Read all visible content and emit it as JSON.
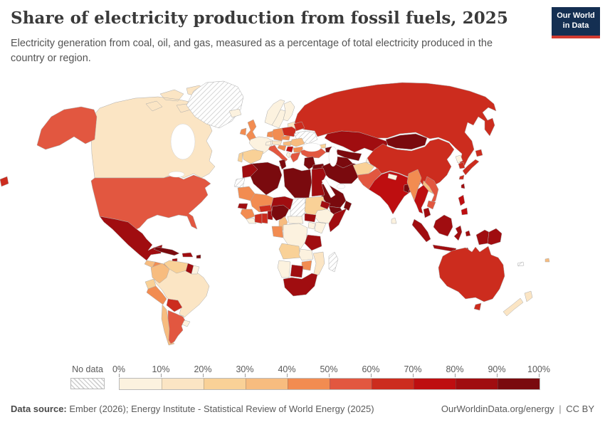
{
  "header": {
    "title": "Share of electricity production from fossil fuels, 2025",
    "subtitle": "Electricity generation from coal, oil, and gas, measured as a percentage of total electricity produced in the country or region."
  },
  "logo": {
    "line1": "Our World",
    "line2": "in Data",
    "bg_color": "#142f52",
    "accent_color": "#d13a30"
  },
  "legend": {
    "no_data_label": "No data",
    "tick_labels": [
      "0%",
      "10%",
      "20%",
      "30%",
      "40%",
      "50%",
      "60%",
      "70%",
      "80%",
      "90%",
      "100%"
    ]
  },
  "footer": {
    "source_label": "Data source:",
    "source_text": "Ember (2026); Energy Institute - Statistical Review of World Energy (2025)",
    "site": "OurWorldinData.org/energy",
    "separator": "|",
    "license": "CC BY"
  },
  "chart_data": {
    "type": "choropleth",
    "title": "Share of electricity production from fossil fuels, 2025",
    "unit": "%",
    "legend_position": "bottom",
    "color_scale": {
      "bin_edges": [
        0,
        10,
        20,
        30,
        40,
        50,
        60,
        70,
        80,
        90,
        100
      ],
      "colors": [
        "#FCF2DF",
        "#FBE5C4",
        "#F9D197",
        "#F7BC7F",
        "#F28C51",
        "#E25740",
        "#CC2C1E",
        "#BE0E10",
        "#A00D10",
        "#7A0A0E"
      ],
      "no_data": "hatched"
    },
    "no_data_regions": [
      "Greenland",
      "Ukraine",
      "Chad",
      "Western Sahara",
      "Madagascar",
      "New Caledonia"
    ],
    "values": {
      "canada": 16,
      "united-states": 58,
      "mexico": 82,
      "guatemala": 33,
      "nicaragua": 47,
      "costa-rica": 2,
      "panama": 46,
      "cuba": 95,
      "jamaica": 87,
      "hispaniola": 85,
      "puerto-rico": 95,
      "colombia": 32,
      "venezuela": 24,
      "guyana": 85,
      "suriname": 6,
      "ecuador": 22,
      "peru": 45,
      "brazil": 11,
      "bolivia": 66,
      "paraguay": 1,
      "chile": 35,
      "argentina": 56,
      "uruguay": 5,
      "greenland": null,
      "iceland": 0,
      "norway": 1,
      "sweden": 1,
      "finland": 7,
      "denmark": 15,
      "united-kingdom": 42,
      "ireland": 44,
      "france": 6,
      "spain": 22,
      "portugal": 26,
      "netherlands": 46,
      "germany": 46,
      "switzerland": 2,
      "austria": 14,
      "czechia": 48,
      "poland": 64,
      "baltics": 15,
      "belarus": 64,
      "ukraine": null,
      "hungary": 34,
      "romania": 33,
      "serbia": 72,
      "croatia": 42,
      "bulgaria": 42,
      "albania": 1,
      "greece": 55,
      "italy": 54,
      "russia": 63,
      "turkey": 56,
      "georgia": 28,
      "azerbaijan": 93,
      "kazakhstan": 86,
      "uzbekistan": 96,
      "turkmenistan": 100,
      "kyrgyzstan": 7,
      "tajikistan": 6,
      "afghanistan": 24,
      "pakistan": 52,
      "india": 74,
      "nepal": 2,
      "bangladesh": 98,
      "sri-lanka": 8,
      "myanmar": 44,
      "thailand": 72,
      "laos": 34,
      "vietnam": 55,
      "cambodia": 55,
      "china": 62,
      "mongolia": 94,
      "north-korea": 8,
      "south-korea": 62,
      "japan": 65,
      "taiwan": 84,
      "philippines": 78,
      "malaysia": 88,
      "indonesia": 82,
      "papua-new-guinea": 85,
      "australia": 63,
      "new-zealand": 14,
      "fiji": 38,
      "new-caledonia": null,
      "morocco": 87,
      "western-sahara": null,
      "algeria": 99,
      "tunisia": 97,
      "libya": 99,
      "egypt": 88,
      "mauritania": 44,
      "mali": 46,
      "niger": 84,
      "chad": null,
      "sudan": 27,
      "eritrea": 88,
      "ethiopia": 1,
      "somalia": 88,
      "south-sudan": 84,
      "kenya": 7,
      "uganda": 4,
      "senegal": 80,
      "guinea": 42,
      "liberia": 8,
      "cote-divoire": 62,
      "ghana": 62,
      "togo-benin": 84,
      "burkina-faso": 65,
      "nigeria": 92,
      "cameroon": 32,
      "central-african-republic": 2,
      "gabon-congo": 46,
      "drc": 2,
      "tanzania": 83,
      "angola": 26,
      "zambia": 4,
      "mozambique": 14,
      "zimbabwe": 45,
      "botswana": 88,
      "namibia": 4,
      "south-africa": 84,
      "madagascar": null,
      "levant": 95,
      "iraq": 98,
      "iran": 94,
      "saudi-arabia": 100,
      "yemen": 100,
      "oman": 97
    }
  }
}
